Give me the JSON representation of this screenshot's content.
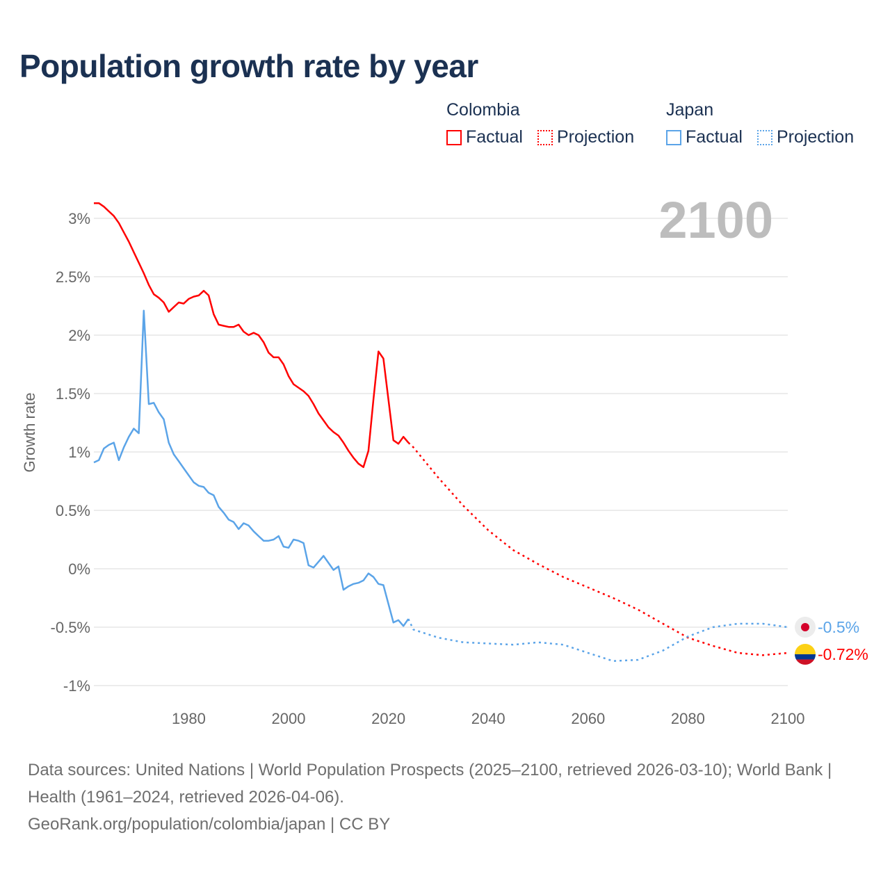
{
  "title": "Population growth rate by year",
  "legend": {
    "groups": [
      {
        "name": "Colombia",
        "color": "#ff0000",
        "items": [
          "Factual",
          "Projection"
        ]
      },
      {
        "name": "Japan",
        "color": "#5ba4e8",
        "items": [
          "Factual",
          "Projection"
        ]
      }
    ]
  },
  "chart_data": {
    "type": "line",
    "title": "Population growth rate by year",
    "ylabel": "Growth rate",
    "xlabel": "",
    "xlim": [
      1961,
      2100
    ],
    "ylim": [
      -1.1,
      3.3
    ],
    "x_ticks": [
      1980,
      2000,
      2020,
      2040,
      2060,
      2080,
      2100
    ],
    "y_ticks": [
      -1,
      -0.5,
      0,
      0.5,
      1,
      1.5,
      2,
      2.5,
      3
    ],
    "y_tick_labels": [
      "-1%",
      "-0.5%",
      "0%",
      "0.5%",
      "1%",
      "1.5%",
      "2%",
      "2.5%",
      "3%"
    ],
    "grid": true,
    "year_badge": "2100",
    "series": [
      {
        "name": "Colombia Factual",
        "color": "#ff0000",
        "style": "solid",
        "x_start": 1961,
        "values": [
          3.13,
          3.13,
          3.1,
          3.06,
          3.02,
          2.96,
          2.88,
          2.8,
          2.71,
          2.62,
          2.53,
          2.43,
          2.35,
          2.32,
          2.28,
          2.2,
          2.24,
          2.28,
          2.27,
          2.31,
          2.33,
          2.34,
          2.38,
          2.34,
          2.18,
          2.09,
          2.08,
          2.07,
          2.07,
          2.09,
          2.03,
          2.0,
          2.02,
          2.0,
          1.94,
          1.85,
          1.81,
          1.81,
          1.75,
          1.65,
          1.58,
          1.55,
          1.52,
          1.48,
          1.41,
          1.33,
          1.27,
          1.21,
          1.17,
          1.14,
          1.08,
          1.01,
          0.95,
          0.9,
          0.87,
          1.01,
          1.45,
          1.86,
          1.8,
          1.45,
          1.1,
          1.07,
          1.13,
          1.08
        ]
      },
      {
        "name": "Colombia Projection",
        "color": "#ff0000",
        "style": "dotted",
        "x": [
          2024,
          2025,
          2030,
          2035,
          2040,
          2045,
          2050,
          2055,
          2060,
          2065,
          2070,
          2075,
          2080,
          2085,
          2090,
          2095,
          2100
        ],
        "values": [
          1.08,
          1.04,
          0.78,
          0.54,
          0.33,
          0.16,
          0.04,
          -0.07,
          -0.16,
          -0.25,
          -0.35,
          -0.47,
          -0.59,
          -0.66,
          -0.72,
          -0.74,
          -0.72
        ]
      },
      {
        "name": "Japan Factual",
        "color": "#5ba4e8",
        "style": "solid",
        "x_start": 1961,
        "values": [
          0.91,
          0.93,
          1.03,
          1.06,
          1.08,
          0.93,
          1.04,
          1.13,
          1.2,
          1.16,
          2.21,
          1.41,
          1.42,
          1.34,
          1.28,
          1.08,
          0.98,
          0.92,
          0.86,
          0.8,
          0.74,
          0.71,
          0.7,
          0.65,
          0.63,
          0.53,
          0.48,
          0.42,
          0.4,
          0.34,
          0.39,
          0.37,
          0.32,
          0.28,
          0.24,
          0.24,
          0.25,
          0.28,
          0.19,
          0.18,
          0.25,
          0.24,
          0.22,
          0.03,
          0.01,
          0.06,
          0.11,
          0.05,
          -0.01,
          0.02,
          -0.18,
          -0.15,
          -0.13,
          -0.12,
          -0.1,
          -0.04,
          -0.07,
          -0.13,
          -0.14,
          -0.3,
          -0.46,
          -0.44,
          -0.49,
          -0.43
        ]
      },
      {
        "name": "Japan Projection",
        "color": "#5ba4e8",
        "style": "dotted",
        "x": [
          2024,
          2025,
          2030,
          2035,
          2040,
          2045,
          2050,
          2055,
          2060,
          2065,
          2070,
          2075,
          2080,
          2085,
          2090,
          2095,
          2100
        ],
        "values": [
          -0.43,
          -0.52,
          -0.59,
          -0.63,
          -0.64,
          -0.65,
          -0.63,
          -0.65,
          -0.72,
          -0.79,
          -0.78,
          -0.7,
          -0.58,
          -0.5,
          -0.47,
          -0.47,
          -0.5
        ]
      }
    ],
    "end_labels": [
      {
        "country": "Japan",
        "label": "-0.5%",
        "value": -0.5,
        "color": "#5ba4e8"
      },
      {
        "country": "Colombia",
        "label": "-0.72%",
        "value": -0.72,
        "color": "#ff0000"
      }
    ]
  },
  "footer": {
    "sources": "Data sources: United Nations | World Population Prospects (2025–2100, retrieved 2026-03-10); World Bank | Health (1961–2024, retrieved 2026-04-06).",
    "url": "GeoRank.org/population/colombia/japan | CC BY"
  }
}
